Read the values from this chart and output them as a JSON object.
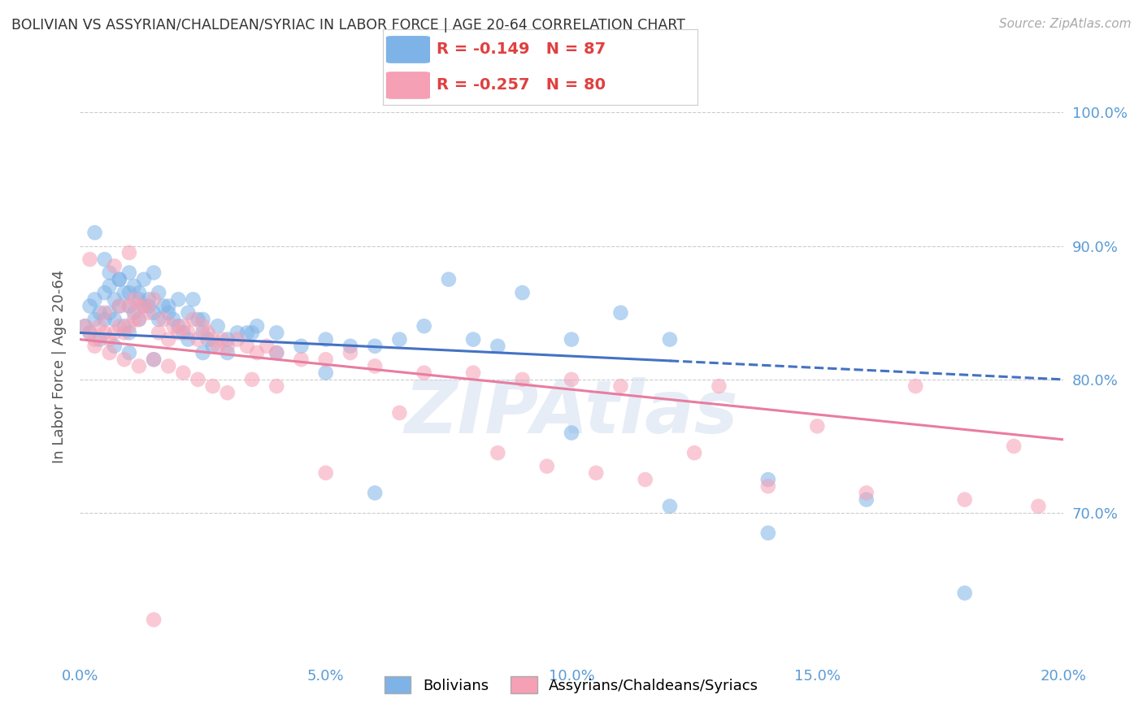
{
  "title": "BOLIVIAN VS ASSYRIAN/CHALDEAN/SYRIAC IN LABOR FORCE | AGE 20-64 CORRELATION CHART",
  "source": "Source: ZipAtlas.com",
  "xlabel_vals": [
    0.0,
    5.0,
    10.0,
    15.0,
    20.0
  ],
  "ylabel_vals": [
    70.0,
    80.0,
    90.0,
    100.0
  ],
  "xmin": 0.0,
  "xmax": 20.0,
  "ymin": 59.0,
  "ymax": 103.0,
  "blue_R": -0.149,
  "blue_N": 87,
  "pink_R": -0.257,
  "pink_N": 80,
  "blue_color": "#7EB3E8",
  "pink_color": "#F5A0B5",
  "blue_line_color": "#4472C4",
  "pink_line_color": "#E87DA0",
  "watermark": "ZIPAtlas",
  "legend_label_blue": "Bolivians",
  "legend_label_pink": "Assyrians/Chaldeans/Syriacs",
  "ylabel": "In Labor Force | Age 20-64",
  "blue_line_x0": 0.0,
  "blue_line_y0": 83.5,
  "blue_line_x1": 20.0,
  "blue_line_y1": 80.0,
  "blue_solid_end": 12.0,
  "pink_line_x0": 0.0,
  "pink_line_y0": 83.0,
  "pink_line_x1": 20.0,
  "pink_line_y1": 75.5,
  "blue_scatter_x": [
    0.1,
    0.2,
    0.2,
    0.3,
    0.3,
    0.4,
    0.4,
    0.5,
    0.5,
    0.6,
    0.6,
    0.7,
    0.7,
    0.8,
    0.8,
    0.9,
    0.9,
    1.0,
    1.0,
    1.0,
    1.1,
    1.1,
    1.2,
    1.2,
    1.3,
    1.3,
    1.4,
    1.5,
    1.5,
    1.6,
    1.7,
    1.8,
    1.9,
    2.0,
    2.1,
    2.2,
    2.3,
    2.4,
    2.5,
    2.6,
    2.7,
    2.8,
    3.0,
    3.2,
    3.4,
    3.6,
    4.0,
    4.5,
    5.0,
    5.5,
    6.0,
    6.5,
    7.0,
    7.5,
    8.5,
    9.0,
    10.0,
    11.0,
    12.0,
    14.0,
    0.3,
    0.5,
    0.6,
    0.8,
    1.0,
    1.2,
    1.4,
    1.6,
    1.8,
    2.0,
    2.2,
    2.5,
    3.0,
    3.5,
    4.0,
    5.0,
    6.0,
    8.0,
    10.0,
    12.0,
    14.0,
    16.0,
    18.0,
    0.7,
    1.0,
    1.5,
    2.5
  ],
  "blue_scatter_y": [
    84.0,
    85.5,
    83.5,
    84.5,
    86.0,
    83.0,
    85.0,
    84.5,
    86.5,
    85.0,
    87.0,
    84.5,
    86.0,
    85.5,
    87.5,
    84.0,
    86.5,
    83.5,
    85.5,
    88.0,
    85.0,
    87.0,
    84.5,
    86.5,
    85.5,
    87.5,
    86.0,
    85.0,
    88.0,
    84.5,
    85.5,
    85.0,
    84.5,
    84.0,
    83.5,
    83.0,
    86.0,
    84.5,
    83.5,
    83.0,
    82.5,
    84.0,
    83.0,
    83.5,
    83.5,
    84.0,
    83.5,
    82.5,
    83.0,
    82.5,
    82.5,
    83.0,
    84.0,
    87.5,
    82.5,
    86.5,
    76.0,
    85.0,
    83.0,
    72.5,
    91.0,
    89.0,
    88.0,
    87.5,
    86.5,
    86.0,
    85.5,
    86.5,
    85.5,
    86.0,
    85.0,
    84.5,
    82.0,
    83.5,
    82.0,
    80.5,
    71.5,
    83.0,
    83.0,
    70.5,
    68.5,
    71.0,
    64.0,
    82.5,
    82.0,
    81.5,
    82.0
  ],
  "pink_scatter_x": [
    0.1,
    0.2,
    0.3,
    0.4,
    0.5,
    0.5,
    0.6,
    0.7,
    0.8,
    0.8,
    0.9,
    1.0,
    1.0,
    1.1,
    1.1,
    1.2,
    1.2,
    1.3,
    1.4,
    1.5,
    1.6,
    1.7,
    1.8,
    1.9,
    2.0,
    2.1,
    2.2,
    2.3,
    2.4,
    2.5,
    2.6,
    2.7,
    2.8,
    2.9,
    3.0,
    3.2,
    3.4,
    3.6,
    3.8,
    4.0,
    4.5,
    5.0,
    5.5,
    6.0,
    7.0,
    8.0,
    9.0,
    10.0,
    11.0,
    13.0,
    15.0,
    17.0,
    19.0,
    0.3,
    0.6,
    0.9,
    1.2,
    1.5,
    1.8,
    2.1,
    2.4,
    2.7,
    3.0,
    3.5,
    4.0,
    5.0,
    6.5,
    8.5,
    9.5,
    10.5,
    11.5,
    12.5,
    14.0,
    16.0,
    18.0,
    19.5,
    0.2,
    0.7,
    1.0,
    1.5
  ],
  "pink_scatter_y": [
    84.0,
    83.5,
    83.0,
    84.0,
    83.5,
    85.0,
    83.0,
    83.5,
    84.0,
    85.5,
    83.5,
    84.0,
    85.5,
    84.5,
    86.0,
    84.5,
    85.5,
    85.5,
    85.0,
    86.0,
    83.5,
    84.5,
    83.0,
    84.0,
    83.5,
    84.0,
    83.5,
    84.5,
    83.0,
    84.0,
    83.5,
    83.0,
    82.5,
    83.0,
    82.5,
    83.0,
    82.5,
    82.0,
    82.5,
    82.0,
    81.5,
    81.5,
    82.0,
    81.0,
    80.5,
    80.5,
    80.0,
    80.0,
    79.5,
    79.5,
    76.5,
    79.5,
    75.0,
    82.5,
    82.0,
    81.5,
    81.0,
    81.5,
    81.0,
    80.5,
    80.0,
    79.5,
    79.0,
    80.0,
    79.5,
    73.0,
    77.5,
    74.5,
    73.5,
    73.0,
    72.5,
    74.5,
    72.0,
    71.5,
    71.0,
    70.5,
    89.0,
    88.5,
    89.5,
    62.0
  ]
}
